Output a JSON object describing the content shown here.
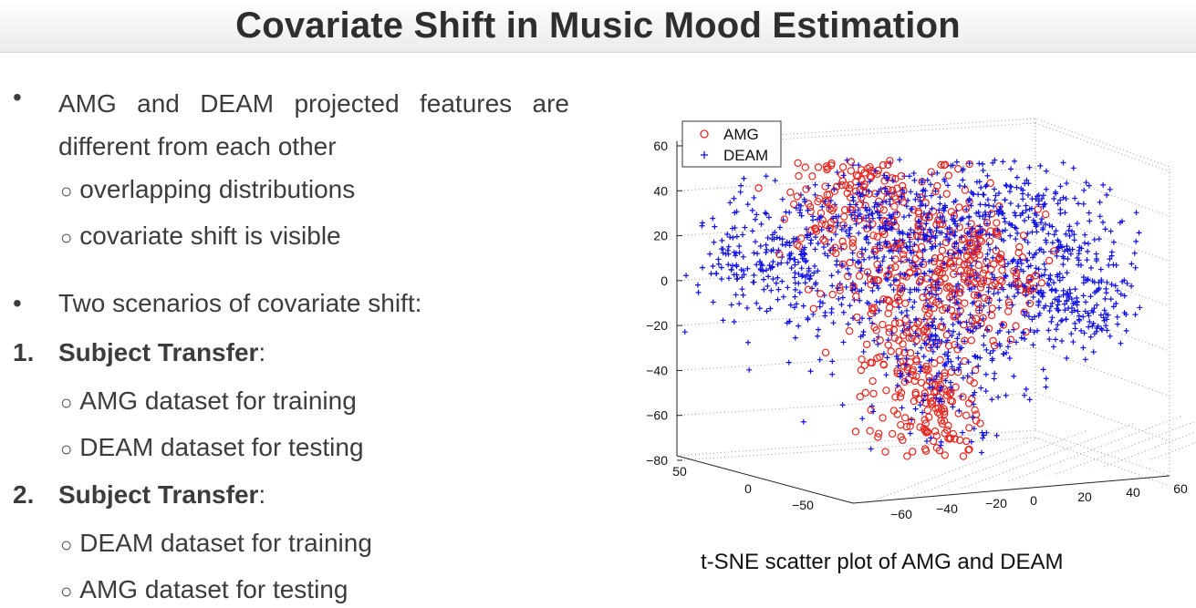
{
  "slide": {
    "title": "Covariate Shift in Music Mood Estimation",
    "bullet_marker": "•",
    "sub_marker": "○",
    "bullets": [
      {
        "text": "AMG and DEAM projected features are different from each other",
        "subs": [
          "overlapping distributions",
          "covariate shift is visible"
        ]
      },
      {
        "text": "Two scenarios of covariate shift:"
      }
    ],
    "numbered": [
      {
        "number": "1.",
        "bold": "Subject Transfer",
        "suffix": ":",
        "subs": [
          "AMG dataset for training",
          "DEAM dataset for testing"
        ]
      },
      {
        "number": "2.",
        "bold": "Subject Transfer",
        "suffix": ":",
        "subs": [
          "DEAM dataset for training",
          "AMG dataset for testing"
        ]
      }
    ],
    "caption": "t-SNE scatter plot of AMG and DEAM"
  },
  "chart_data": {
    "type": "scatter",
    "projection": "3d",
    "grid": true,
    "legend_position": "top-left",
    "z_ticks": [
      "60",
      "40",
      "20",
      "0",
      "−20",
      "−40",
      "−60",
      "−80"
    ],
    "y_ticks": [
      "50",
      "0",
      "−50"
    ],
    "x_ticks": [
      "−60",
      "−40",
      "−20",
      "0",
      "20",
      "40",
      "60"
    ],
    "zlim": [
      -90,
      65
    ],
    "series": [
      {
        "name": "AMG",
        "marker": "circle",
        "color": "#e8261e"
      },
      {
        "name": "DEAM",
        "marker": "plus",
        "color": "#1212e6"
      }
    ]
  }
}
